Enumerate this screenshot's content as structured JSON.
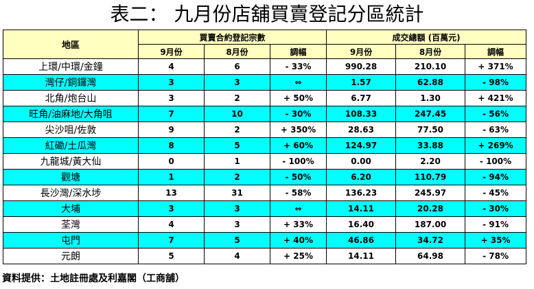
{
  "title": "表二：  九月份店舖買賣登記分區統計",
  "header": {
    "region": "地區",
    "count_group": "買賣合約登記宗數",
    "value_group": "成交總額 (百萬元)",
    "sep": "9月份",
    "aug": "8月份",
    "change": "調幅"
  },
  "rows": [
    {
      "region": "上環/中環/金鐘",
      "cnt_sep": "4",
      "cnt_aug": "6",
      "cnt_chg": "- 33%",
      "val_sep": "990.28",
      "val_aug": "210.10",
      "val_chg": "+ 371%",
      "bg": "white"
    },
    {
      "region": "灣仔/銅鑼灣",
      "cnt_sep": "3",
      "cnt_aug": "3",
      "cnt_chg": "⇔",
      "val_sep": "1.57",
      "val_aug": "62.88",
      "val_chg": "- 98%",
      "bg": "cyan"
    },
    {
      "region": "北角/炮台山",
      "cnt_sep": "3",
      "cnt_aug": "2",
      "cnt_chg": "+ 50%",
      "val_sep": "6.77",
      "val_aug": "1.30",
      "val_chg": "+ 421%",
      "bg": "white"
    },
    {
      "region": "旺角/油麻地/大角咀",
      "cnt_sep": "7",
      "cnt_aug": "10",
      "cnt_chg": "- 30%",
      "val_sep": "108.33",
      "val_aug": "247.45",
      "val_chg": "- 56%",
      "bg": "cyan"
    },
    {
      "region": "尖沙咀/佐敦",
      "cnt_sep": "9",
      "cnt_aug": "2",
      "cnt_chg": "+ 350%",
      "val_sep": "28.63",
      "val_aug": "77.50",
      "val_chg": "- 63%",
      "bg": "white"
    },
    {
      "region": "紅磡/土瓜灣",
      "cnt_sep": "8",
      "cnt_aug": "5",
      "cnt_chg": "+ 60%",
      "val_sep": "124.97",
      "val_aug": "33.88",
      "val_chg": "+ 269%",
      "bg": "cyan"
    },
    {
      "region": "九龍城/黃大仙",
      "cnt_sep": "0",
      "cnt_aug": "1",
      "cnt_chg": "- 100%",
      "val_sep": "0.00",
      "val_aug": "2.20",
      "val_chg": "- 100%",
      "bg": "white"
    },
    {
      "region": "觀塘",
      "cnt_sep": "1",
      "cnt_aug": "2",
      "cnt_chg": "- 50%",
      "val_sep": "6.20",
      "val_aug": "110.79",
      "val_chg": "- 94%",
      "bg": "cyan"
    },
    {
      "region": "長沙灣/深水埗",
      "cnt_sep": "13",
      "cnt_aug": "31",
      "cnt_chg": "- 58%",
      "val_sep": "136.23",
      "val_aug": "245.97",
      "val_chg": "- 45%",
      "bg": "white"
    },
    {
      "region": "大埔",
      "cnt_sep": "3",
      "cnt_aug": "3",
      "cnt_chg": "⇔",
      "val_sep": "14.11",
      "val_aug": "20.28",
      "val_chg": "- 30%",
      "bg": "cyan"
    },
    {
      "region": "荃灣",
      "cnt_sep": "4",
      "cnt_aug": "3",
      "cnt_chg": "+ 33%",
      "val_sep": "16.40",
      "val_aug": "187.00",
      "val_chg": "- 91%",
      "bg": "white"
    },
    {
      "region": "屯門",
      "cnt_sep": "7",
      "cnt_aug": "5",
      "cnt_chg": "+ 40%",
      "val_sep": "46.86",
      "val_aug": "34.72",
      "val_chg": "+ 35%",
      "bg": "cyan"
    },
    {
      "region": "元朗",
      "cnt_sep": "5",
      "cnt_aug": "4",
      "cnt_chg": "+ 25%",
      "val_sep": "14.11",
      "val_aug": "64.98",
      "val_chg": "- 78%",
      "bg": "white"
    }
  ],
  "source": "資料提供：土地註冊處及利嘉閣（工商舖）",
  "colors": {
    "header_bg": "#ffffc0",
    "cyan_row": "#00ffff",
    "white_row": "#ffffff"
  }
}
